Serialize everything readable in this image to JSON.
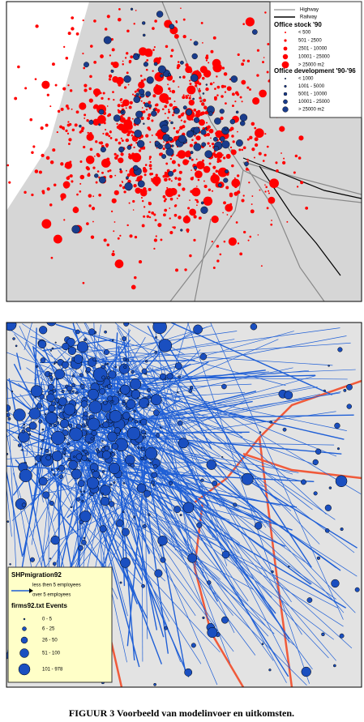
{
  "map1": {
    "legend": {
      "lines": [
        "Highway",
        "Railway"
      ],
      "office_stock": {
        "title": "Office stock '90",
        "items": [
          "< 500",
          "501 - 2500",
          "2501 - 10000",
          "10001 - 25000",
          "> 25000 m2"
        ]
      },
      "office_development": {
        "title": "Office development '90-'96",
        "items": [
          "< 1000",
          "1001 - 5000",
          "5001 - 10000",
          "10001 - 25000",
          "> 25000 m2"
        ]
      }
    }
  },
  "map2": {
    "legend": {
      "title": "SHPmigration92",
      "lines": [
        "less then 5 employees",
        "over 5 employees"
      ],
      "events_title": "firms92.txt Events",
      "items": [
        "0 - 5",
        "6 - 25",
        "26 - 50",
        "51 - 100",
        "101 - 978"
      ]
    }
  },
  "caption": "FIGUUR 3  Voorbeeld van modelinvoer en uitkomsten."
}
